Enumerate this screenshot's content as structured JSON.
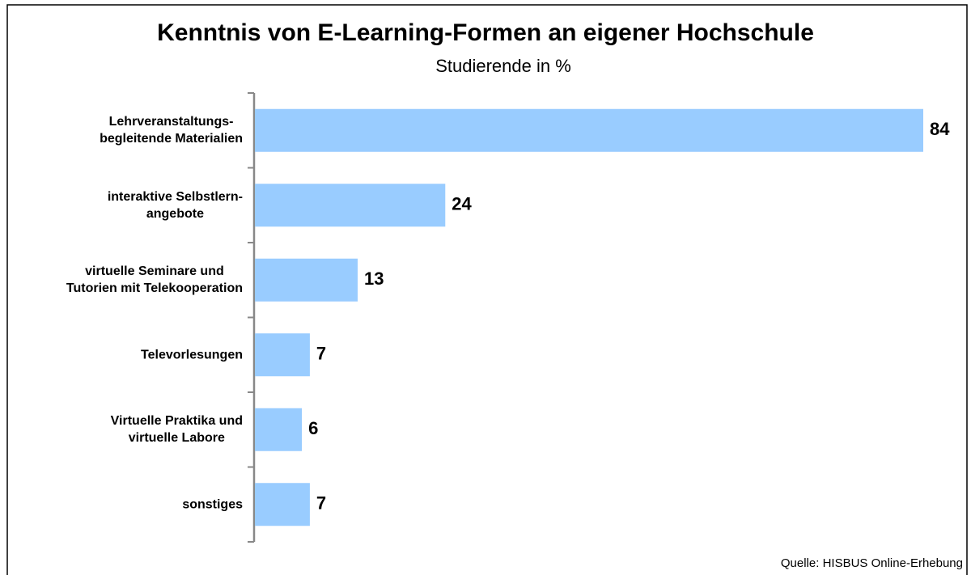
{
  "chart_data": {
    "type": "bar",
    "orientation": "horizontal",
    "title": "Kenntnis von E-Learning-Formen an eigener Hochschule",
    "subtitle": "Studierende in %",
    "categories": [
      "Lehrveranstaltungs-\nbegleitende Materialien",
      "interaktive Selbstlern-\nangebote",
      "virtuelle Seminare und\nTutorien mit Telekooperation",
      "Televorlesungen",
      "Virtuelle Praktika und\nvirtuelle Labore",
      "sonstiges"
    ],
    "values": [
      84,
      24,
      13,
      7,
      6,
      7
    ],
    "color": "#99ccff",
    "source": "Quelle: HISBUS Online-Erhebung"
  }
}
